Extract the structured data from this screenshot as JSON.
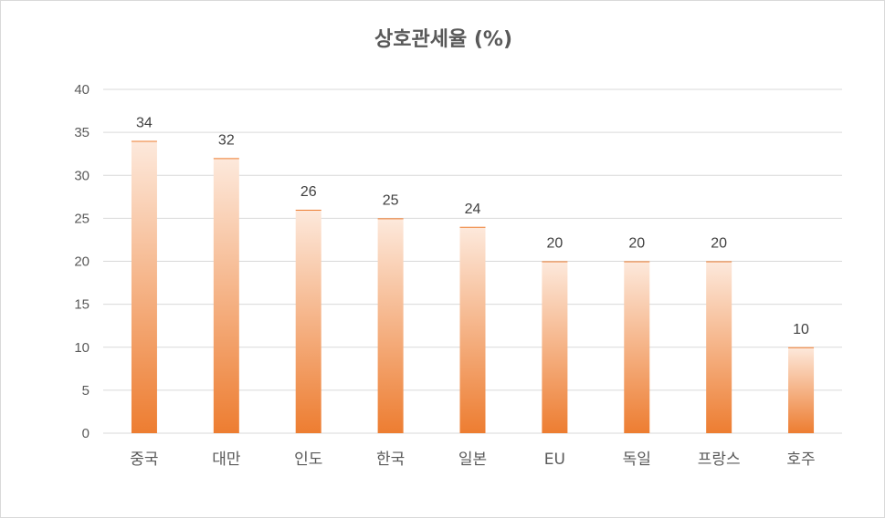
{
  "chart_data": {
    "type": "bar",
    "title": "상호관세율 (%)",
    "xlabel": "",
    "ylabel": "",
    "categories": [
      "중국",
      "대만",
      "인도",
      "한국",
      "일본",
      "EU",
      "독일",
      "프랑스",
      "호주"
    ],
    "values": [
      34,
      32,
      26,
      25,
      24,
      20,
      20,
      20,
      10
    ],
    "ylim": [
      0,
      40
    ],
    "yticks": [
      0,
      5,
      10,
      15,
      20,
      25,
      30,
      35,
      40
    ],
    "grid": true,
    "legend": "none",
    "bar_color_top": "#fde9dc",
    "bar_color_bottom": "#ed7d31",
    "grid_color": "#d9d9d9"
  }
}
